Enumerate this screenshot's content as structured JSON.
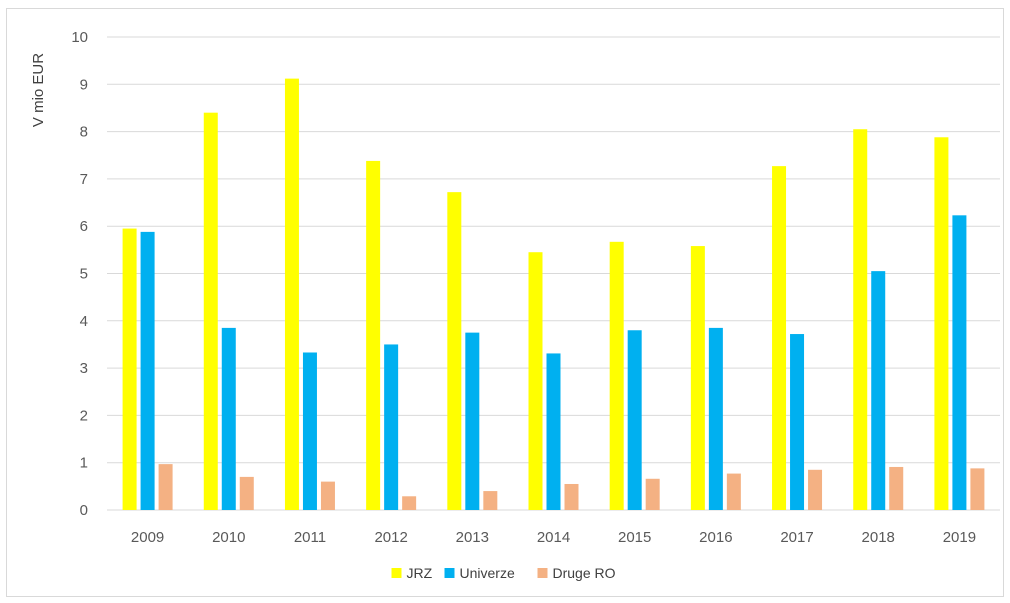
{
  "chart_data": {
    "type": "bar",
    "title": "",
    "xlabel": "",
    "ylabel": "V mio EUR",
    "ylim": [
      0,
      10
    ],
    "yticks": [
      0,
      1,
      2,
      3,
      4,
      5,
      6,
      7,
      8,
      9,
      10
    ],
    "grid": true,
    "legend_position": "bottom",
    "categories": [
      "2009",
      "2010",
      "2011",
      "2012",
      "2013",
      "2014",
      "2015",
      "2016",
      "2017",
      "2018",
      "2019"
    ],
    "series": [
      {
        "name": "JRZ",
        "color": "#ffff00",
        "values": [
          5.95,
          8.4,
          9.12,
          7.38,
          6.72,
          5.45,
          5.67,
          5.58,
          7.27,
          8.05,
          7.88
        ]
      },
      {
        "name": "Univerze",
        "color": "#00b0f0",
        "values": [
          5.88,
          3.85,
          3.33,
          3.5,
          3.75,
          3.31,
          3.8,
          3.85,
          3.72,
          5.05,
          6.23
        ]
      },
      {
        "name": "Druge RO",
        "color": "#f4b183",
        "values": [
          0.97,
          0.7,
          0.6,
          0.29,
          0.4,
          0.55,
          0.66,
          0.77,
          0.85,
          0.91,
          0.88
        ]
      }
    ]
  }
}
